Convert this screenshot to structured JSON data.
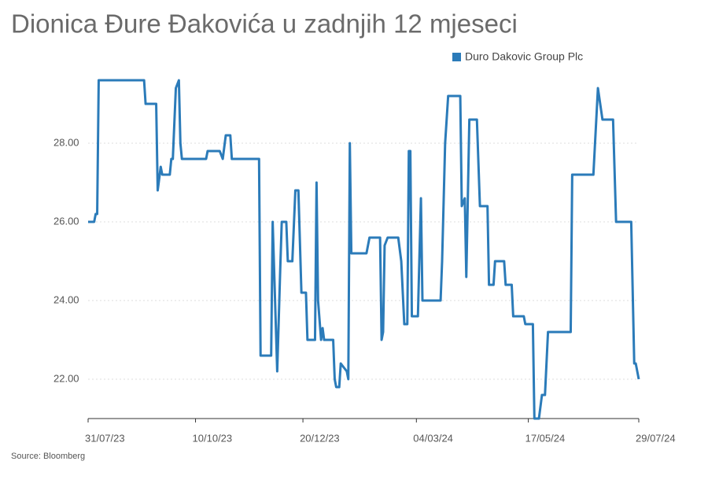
{
  "chart_data": {
    "type": "line",
    "title": "Dionica Đure Đakovića u zadnjih 12 mjeseci",
    "source": "Source: Bloomberg",
    "legend": "top-right",
    "grid": true,
    "xlim": [
      0,
      364
    ],
    "xticks": [
      {
        "value": 0,
        "label": "31/07/23"
      },
      {
        "value": 71,
        "label": "10/10/23"
      },
      {
        "value": 142,
        "label": "20/12/23"
      },
      {
        "value": 217,
        "label": "04/03/24"
      },
      {
        "value": 291,
        "label": "17/05/24"
      },
      {
        "value": 364,
        "label": "29/07/24"
      }
    ],
    "ylim": [
      21,
      30
    ],
    "yticks": [
      {
        "value": 22,
        "label": "22.00"
      },
      {
        "value": 24,
        "label": "24.00"
      },
      {
        "value": 26,
        "label": "26.00"
      },
      {
        "value": 28,
        "label": "28.00"
      }
    ],
    "x": [
      0,
      4,
      5,
      6,
      7,
      37,
      38,
      45,
      46,
      48,
      49,
      54,
      55,
      56,
      58,
      60,
      61,
      62,
      78,
      79,
      87,
      89,
      91,
      94,
      95,
      113,
      114,
      121,
      122,
      125,
      127,
      128,
      131,
      132,
      135,
      137,
      139,
      141,
      144,
      145,
      150,
      151,
      152,
      154,
      155,
      156,
      162,
      163,
      164,
      166,
      167,
      171,
      172,
      173,
      174,
      184,
      186,
      193,
      194,
      195,
      196,
      198,
      205,
      207,
      209,
      211,
      212,
      213,
      214,
      218,
      220,
      221,
      233,
      234,
      236,
      238,
      246,
      247,
      249,
      250,
      252,
      257,
      259,
      264,
      265,
      268,
      269,
      275,
      276,
      280,
      281,
      288,
      289,
      294,
      295,
      298,
      300,
      302,
      304,
      319,
      320,
      334,
      337,
      340,
      347,
      349,
      359,
      361,
      362,
      364
    ],
    "series": [
      {
        "name": "Duro Dakovic Group Plc",
        "color": "#2b7bb9",
        "values": [
          26.0,
          26.0,
          26.2,
          26.2,
          29.6,
          29.6,
          29.0,
          29.0,
          26.8,
          27.4,
          27.2,
          27.2,
          27.6,
          27.6,
          29.4,
          29.6,
          28.0,
          27.6,
          27.6,
          27.8,
          27.8,
          27.6,
          28.2,
          28.2,
          27.6,
          27.6,
          22.6,
          22.6,
          26.0,
          22.2,
          24.8,
          26.0,
          26.0,
          25.0,
          25.0,
          26.8,
          26.8,
          24.2,
          24.2,
          23.0,
          23.0,
          27.0,
          24.0,
          23.0,
          23.3,
          23.0,
          23.0,
          22.0,
          21.8,
          21.8,
          22.4,
          22.2,
          22.0,
          28.0,
          25.2,
          25.2,
          25.6,
          25.6,
          23.0,
          23.2,
          25.4,
          25.6,
          25.6,
          25.0,
          23.4,
          23.4,
          27.8,
          27.8,
          23.6,
          23.6,
          26.6,
          24.0,
          24.0,
          25.0,
          28.0,
          29.2,
          29.2,
          26.4,
          26.6,
          24.6,
          28.6,
          28.6,
          26.4,
          26.4,
          24.4,
          24.4,
          25.0,
          25.0,
          24.4,
          24.4,
          23.6,
          23.6,
          23.4,
          23.4,
          21.0,
          21.0,
          21.6,
          21.6,
          23.2,
          23.2,
          27.2,
          27.2,
          29.4,
          28.6,
          28.6,
          26.0,
          26.0,
          22.4,
          22.4,
          22.0
        ]
      }
    ]
  }
}
